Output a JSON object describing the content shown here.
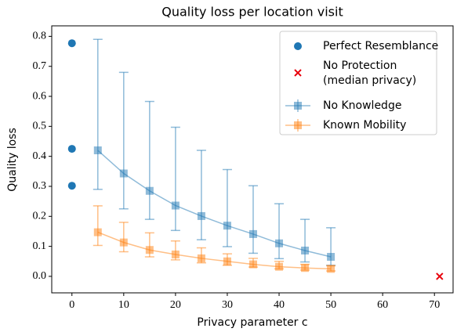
{
  "chart_data": {
    "type": "errorbar",
    "title": "Quality loss per location visit",
    "x_label": "Privacy parameter c",
    "y_label": "Quality loss",
    "xlim": [
      -3.9,
      73.6
    ],
    "ylim": [
      -0.055,
      0.835
    ],
    "xticks": [
      0,
      10,
      20,
      30,
      40,
      50,
      60,
      70
    ],
    "yticks": [
      {
        "value": 0,
        "label": "0.0"
      },
      0.1,
      0.2,
      0.3,
      0.4,
      0.5,
      0.6,
      0.7,
      0.8
    ],
    "legend": "upper right",
    "series": [
      {
        "name": "Perfect Resemblance",
        "type": "scatter",
        "marker": "circle",
        "color": "#1f77b4",
        "x": [
          0,
          0,
          0
        ],
        "values": [
          0.777,
          0.425,
          0.302
        ]
      },
      {
        "name": "No Protection\n(median privacy)",
        "type": "scatter",
        "marker": "cross",
        "color": "#e8000b",
        "x": [
          71
        ],
        "values": [
          0.0
        ]
      },
      {
        "name": "No Knowledge",
        "type": "errorbar",
        "color": "#1f77b4",
        "x": [
          5,
          10,
          15,
          20,
          25,
          30,
          35,
          40,
          45,
          50
        ],
        "values": [
          0.42,
          0.343,
          0.285,
          0.236,
          0.201,
          0.169,
          0.141,
          0.11,
          0.086,
          0.065
        ],
        "lower": [
          0.29,
          0.225,
          0.19,
          0.153,
          0.122,
          0.099,
          0.077,
          0.059,
          0.048,
          0.037
        ],
        "upper": [
          0.79,
          0.68,
          0.583,
          0.497,
          0.42,
          0.356,
          0.302,
          0.242,
          0.19,
          0.162
        ]
      },
      {
        "name": "Known Mobility",
        "type": "errorbar",
        "color": "#ff7f0e",
        "x": [
          5,
          10,
          15,
          20,
          25,
          30,
          35,
          40,
          45,
          50
        ],
        "values": [
          0.147,
          0.113,
          0.088,
          0.073,
          0.06,
          0.05,
          0.04,
          0.032,
          0.028,
          0.025
        ],
        "lower": [
          0.103,
          0.082,
          0.065,
          0.055,
          0.045,
          0.037,
          0.031,
          0.025,
          0.021,
          0.018
        ],
        "upper": [
          0.235,
          0.18,
          0.145,
          0.118,
          0.095,
          0.075,
          0.06,
          0.05,
          0.04,
          0.035
        ]
      }
    ]
  }
}
